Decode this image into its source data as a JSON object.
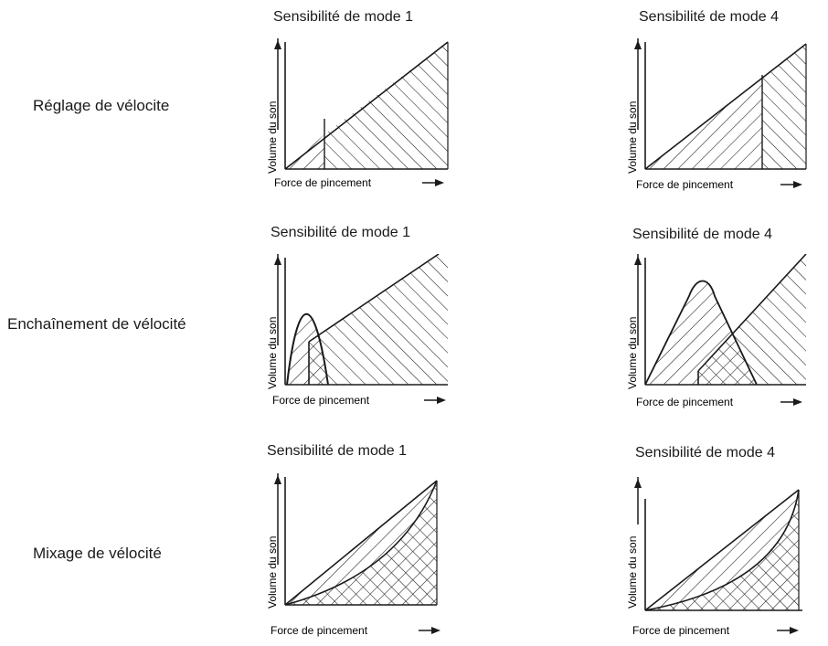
{
  "rows": [
    {
      "label": "Réglage de vélocite",
      "mode1": {
        "title": "Sensibilité de mode 1",
        "ylabel": "Volume du son",
        "xlabel": "Force de pincement"
      },
      "mode4": {
        "title": "Sensibilité de mode 4",
        "ylabel": "Volume du son",
        "xlabel": "Force de pincement"
      }
    },
    {
      "label": "Enchaînement de vélocité",
      "mode1": {
        "title": "Sensibilité de mode 1",
        "ylabel": "Volume du son",
        "xlabel": "Force de pincement"
      },
      "mode4": {
        "title": "Sensibilité de mode 4",
        "ylabel": "Volume du son",
        "xlabel": "Force de pincement"
      }
    },
    {
      "label": "Mixage de vélocité",
      "mode1": {
        "title": "Sensibilité de mode 1",
        "ylabel": "Volume du son",
        "xlabel": "Force de pincement"
      },
      "mode4": {
        "title": "Sensibilité de mode 4",
        "ylabel": "Volume du son",
        "xlabel": "Force de pincement"
      }
    }
  ]
}
